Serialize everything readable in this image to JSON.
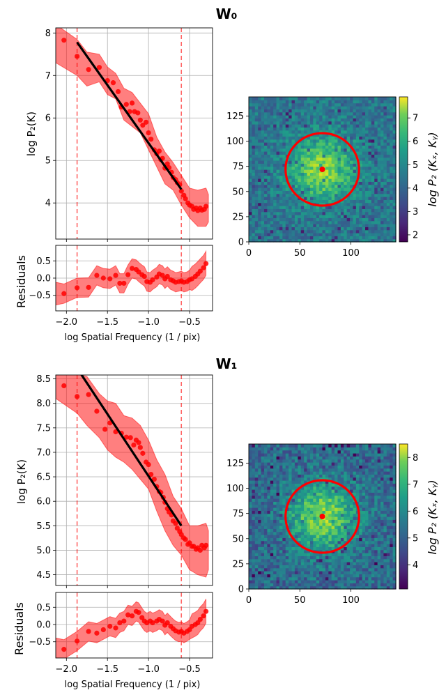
{
  "panels": [
    {
      "title": "W₀",
      "spectrum": {
        "type": "line",
        "ylabel": "log P₂(K)",
        "xlim": [
          -2.13,
          -0.22
        ],
        "ylim": [
          3.15,
          8.12
        ],
        "yticks": [
          4,
          5,
          6,
          7,
          8
        ],
        "vlines": [
          -1.87,
          -0.6
        ],
        "fit_line": [
          [
            -1.87,
            7.78
          ],
          [
            -0.6,
            4.32
          ]
        ],
        "points": [
          [
            -2.03,
            7.83
          ],
          [
            -1.87,
            7.45
          ],
          [
            -1.73,
            7.14
          ],
          [
            -1.6,
            7.19
          ],
          [
            -1.5,
            6.88
          ],
          [
            -1.43,
            6.83
          ],
          [
            -1.37,
            6.62
          ],
          [
            -1.33,
            6.26
          ],
          [
            -1.27,
            6.32
          ],
          [
            -1.23,
            6.15
          ],
          [
            -1.2,
            6.35
          ],
          [
            -1.17,
            6.15
          ],
          [
            -1.13,
            6.12
          ],
          [
            -1.1,
            5.95
          ],
          [
            -1.07,
            5.83
          ],
          [
            -1.03,
            5.9
          ],
          [
            -1.0,
            5.65
          ],
          [
            -0.97,
            5.5
          ],
          [
            -0.93,
            5.25
          ],
          [
            -0.9,
            5.16
          ],
          [
            -0.87,
            5.22
          ],
          [
            -0.85,
            5.02
          ],
          [
            -0.83,
            5.05
          ],
          [
            -0.8,
            4.82
          ],
          [
            -0.77,
            4.92
          ],
          [
            -0.75,
            4.83
          ],
          [
            -0.72,
            4.72
          ],
          [
            -0.7,
            4.6
          ],
          [
            -0.67,
            4.55
          ],
          [
            -0.65,
            4.48
          ],
          [
            -0.62,
            4.43
          ],
          [
            -0.6,
            4.28
          ],
          [
            -0.57,
            4.18
          ],
          [
            -0.55,
            4.1
          ],
          [
            -0.52,
            4.0
          ],
          [
            -0.5,
            3.95
          ],
          [
            -0.47,
            3.92
          ],
          [
            -0.45,
            3.85
          ],
          [
            -0.42,
            3.88
          ],
          [
            -0.4,
            3.82
          ],
          [
            -0.37,
            3.88
          ],
          [
            -0.35,
            3.83
          ],
          [
            -0.32,
            3.85
          ],
          [
            -0.3,
            3.92
          ]
        ],
        "band_upper": [
          [
            -2.13,
            8.2
          ],
          [
            -1.87,
            7.85
          ],
          [
            -1.75,
            7.55
          ],
          [
            -1.6,
            7.5
          ],
          [
            -1.5,
            7.2
          ],
          [
            -1.4,
            7.05
          ],
          [
            -1.3,
            6.7
          ],
          [
            -1.2,
            6.6
          ],
          [
            -1.1,
            6.35
          ],
          [
            -1.0,
            6.1
          ],
          [
            -0.9,
            5.55
          ],
          [
            -0.8,
            5.2
          ],
          [
            -0.7,
            4.95
          ],
          [
            -0.6,
            4.65
          ],
          [
            -0.5,
            4.35
          ],
          [
            -0.4,
            4.3
          ],
          [
            -0.3,
            4.35
          ],
          [
            -0.27,
            4.2
          ]
        ],
        "band_lower": [
          [
            -2.13,
            7.3
          ],
          [
            -1.87,
            7.0
          ],
          [
            -1.75,
            6.75
          ],
          [
            -1.6,
            6.85
          ],
          [
            -1.5,
            6.55
          ],
          [
            -1.4,
            6.45
          ],
          [
            -1.3,
            5.95
          ],
          [
            -1.2,
            5.8
          ],
          [
            -1.1,
            5.65
          ],
          [
            -1.0,
            5.25
          ],
          [
            -0.9,
            4.85
          ],
          [
            -0.8,
            4.45
          ],
          [
            -0.7,
            4.3
          ],
          [
            -0.6,
            3.95
          ],
          [
            -0.5,
            3.65
          ],
          [
            -0.4,
            3.45
          ],
          [
            -0.3,
            3.45
          ],
          [
            -0.27,
            3.55
          ]
        ]
      },
      "residuals": {
        "type": "scatter",
        "ylabel": "Residuals",
        "xlabel": "log Spatial Frequency (1 / pix)",
        "ylim": [
          -0.95,
          0.95
        ],
        "yticks": [
          -0.5,
          0.0,
          0.5
        ],
        "xticks": [
          -2.0,
          -1.5,
          -1.0,
          -0.5
        ],
        "xticklabels": [
          "−2.0",
          "−1.5",
          "−1.0",
          "−0.5"
        ],
        "yticklabels": [
          "−0.5",
          "0.0",
          "0.5"
        ],
        "points": [
          [
            -2.03,
            -0.45
          ],
          [
            -1.87,
            -0.28
          ],
          [
            -1.73,
            -0.27
          ],
          [
            -1.63,
            0.08
          ],
          [
            -1.55,
            0.0
          ],
          [
            -1.47,
            -0.02
          ],
          [
            -1.4,
            0.08
          ],
          [
            -1.35,
            -0.15
          ],
          [
            -1.3,
            -0.15
          ],
          [
            -1.25,
            0.1
          ],
          [
            -1.2,
            0.28
          ],
          [
            -1.15,
            0.25
          ],
          [
            -1.12,
            0.18
          ],
          [
            -1.08,
            0.1
          ],
          [
            -1.05,
            0.05
          ],
          [
            -1.02,
            -0.1
          ],
          [
            -0.98,
            -0.12
          ],
          [
            -0.95,
            -0.05
          ],
          [
            -0.9,
            0.03
          ],
          [
            -0.87,
            0.12
          ],
          [
            -0.83,
            0.08
          ],
          [
            -0.8,
            -0.02
          ],
          [
            -0.77,
            0.05
          ],
          [
            -0.73,
            -0.05
          ],
          [
            -0.7,
            -0.08
          ],
          [
            -0.67,
            -0.12
          ],
          [
            -0.63,
            -0.1
          ],
          [
            -0.6,
            -0.08
          ],
          [
            -0.57,
            -0.12
          ],
          [
            -0.53,
            -0.1
          ],
          [
            -0.5,
            -0.05
          ],
          [
            -0.47,
            -0.02
          ],
          [
            -0.43,
            0.05
          ],
          [
            -0.4,
            0.12
          ],
          [
            -0.37,
            0.2
          ],
          [
            -0.33,
            0.3
          ],
          [
            -0.3,
            0.42
          ]
        ]
      },
      "power_map": {
        "type": "heatmap",
        "xticks": [
          0,
          50,
          100
        ],
        "yticks": [
          0,
          25,
          50,
          75,
          100,
          125
        ],
        "extent": 144,
        "center": [
          72,
          72
        ],
        "ring_radius": 36,
        "colorbar_label": "log P₂ (Kₓ, Kᵧ)",
        "colorbar_range": [
          1.7,
          7.9
        ],
        "colorbar_ticks": [
          2,
          3,
          4,
          5,
          6,
          7
        ],
        "noise_seed": 7,
        "level_bg": 4.15,
        "level_peak": 6.9
      }
    },
    {
      "title": "W₁",
      "spectrum": {
        "type": "line",
        "ylabel": "log P₂(K)",
        "xlim": [
          -2.13,
          -0.22
        ],
        "ylim": [
          4.28,
          8.58
        ],
        "yticks": [
          4.5,
          5.0,
          5.5,
          6.0,
          6.5,
          7.0,
          7.5,
          8.0,
          8.5
        ],
        "vlines": [
          -1.87,
          -0.6
        ],
        "fit_line": [
          [
            -1.87,
            8.72
          ],
          [
            -0.6,
            5.5
          ]
        ],
        "points": [
          [
            -2.03,
            8.36
          ],
          [
            -1.87,
            8.14
          ],
          [
            -1.73,
            8.18
          ],
          [
            -1.63,
            7.84
          ],
          [
            -1.53,
            7.47
          ],
          [
            -1.47,
            7.6
          ],
          [
            -1.4,
            7.42
          ],
          [
            -1.33,
            7.39
          ],
          [
            -1.27,
            7.31
          ],
          [
            -1.22,
            7.3
          ],
          [
            -1.18,
            7.15
          ],
          [
            -1.15,
            7.25
          ],
          [
            -1.12,
            7.2
          ],
          [
            -1.1,
            7.1
          ],
          [
            -1.07,
            6.98
          ],
          [
            -1.03,
            6.8
          ],
          [
            -1.0,
            6.75
          ],
          [
            -0.97,
            6.55
          ],
          [
            -0.93,
            6.45
          ],
          [
            -0.9,
            6.3
          ],
          [
            -0.87,
            6.2
          ],
          [
            -0.85,
            6.18
          ],
          [
            -0.82,
            6.08
          ],
          [
            -0.8,
            5.98
          ],
          [
            -0.77,
            5.85
          ],
          [
            -0.75,
            5.78
          ],
          [
            -0.72,
            5.72
          ],
          [
            -0.7,
            5.6
          ],
          [
            -0.67,
            5.55
          ],
          [
            -0.65,
            5.45
          ],
          [
            -0.62,
            5.38
          ],
          [
            -0.6,
            5.32
          ],
          [
            -0.57,
            5.25
          ],
          [
            -0.55,
            5.22
          ],
          [
            -0.52,
            5.12
          ],
          [
            -0.5,
            5.15
          ],
          [
            -0.47,
            5.08
          ],
          [
            -0.45,
            5.08
          ],
          [
            -0.42,
            5.02
          ],
          [
            -0.4,
            5.05
          ],
          [
            -0.37,
            5.0
          ],
          [
            -0.35,
            5.1
          ],
          [
            -0.32,
            5.05
          ],
          [
            -0.3,
            5.1
          ]
        ],
        "band_upper": [
          [
            -2.13,
            8.6
          ],
          [
            -1.87,
            8.6
          ],
          [
            -1.75,
            8.55
          ],
          [
            -1.6,
            8.2
          ],
          [
            -1.5,
            8.05
          ],
          [
            -1.4,
            8.0
          ],
          [
            -1.3,
            7.75
          ],
          [
            -1.2,
            7.7
          ],
          [
            -1.1,
            7.55
          ],
          [
            -1.0,
            7.25
          ],
          [
            -0.9,
            6.85
          ],
          [
            -0.8,
            6.55
          ],
          [
            -0.7,
            6.1
          ],
          [
            -0.6,
            5.85
          ],
          [
            -0.5,
            5.5
          ],
          [
            -0.4,
            5.5
          ],
          [
            -0.3,
            5.55
          ],
          [
            -0.27,
            5.4
          ]
        ],
        "band_lower": [
          [
            -2.13,
            8.1
          ],
          [
            -1.87,
            7.8
          ],
          [
            -1.75,
            7.55
          ],
          [
            -1.6,
            7.3
          ],
          [
            -1.5,
            7.05
          ],
          [
            -1.4,
            6.9
          ],
          [
            -1.3,
            6.8
          ],
          [
            -1.2,
            6.65
          ],
          [
            -1.1,
            6.45
          ],
          [
            -1.0,
            6.25
          ],
          [
            -0.9,
            5.8
          ],
          [
            -0.8,
            5.4
          ],
          [
            -0.7,
            5.1
          ],
          [
            -0.6,
            4.9
          ],
          [
            -0.5,
            4.6
          ],
          [
            -0.4,
            4.5
          ],
          [
            -0.3,
            4.45
          ],
          [
            -0.27,
            4.6
          ]
        ]
      },
      "residuals": {
        "type": "scatter",
        "ylabel": "Residuals",
        "xlabel": "log Spatial Frequency (1 / pix)",
        "ylim": [
          -0.97,
          0.93
        ],
        "yticks": [
          -0.5,
          0.0,
          0.5
        ],
        "xticks": [
          -2.0,
          -1.5,
          -1.0,
          -0.5
        ],
        "xticklabels": [
          "−2.0",
          "−1.5",
          "−1.0",
          "−0.5"
        ],
        "yticklabels": [
          "−0.5",
          "0.0",
          "0.5"
        ],
        "points": [
          [
            -2.03,
            -0.72
          ],
          [
            -1.87,
            -0.48
          ],
          [
            -1.73,
            -0.2
          ],
          [
            -1.63,
            -0.25
          ],
          [
            -1.55,
            -0.15
          ],
          [
            -1.47,
            -0.05
          ],
          [
            -1.4,
            -0.1
          ],
          [
            -1.35,
            0.05
          ],
          [
            -1.3,
            0.1
          ],
          [
            -1.25,
            0.28
          ],
          [
            -1.2,
            0.25
          ],
          [
            -1.15,
            0.38
          ],
          [
            -1.12,
            0.35
          ],
          [
            -1.08,
            0.2
          ],
          [
            -1.05,
            0.1
          ],
          [
            -1.02,
            0.05
          ],
          [
            -0.98,
            0.1
          ],
          [
            -0.95,
            0.05
          ],
          [
            -0.9,
            0.1
          ],
          [
            -0.87,
            0.15
          ],
          [
            -0.83,
            0.1
          ],
          [
            -0.8,
            -0.02
          ],
          [
            -0.77,
            0.05
          ],
          [
            -0.73,
            -0.05
          ],
          [
            -0.7,
            -0.12
          ],
          [
            -0.67,
            -0.18
          ],
          [
            -0.63,
            -0.22
          ],
          [
            -0.6,
            -0.2
          ],
          [
            -0.57,
            -0.25
          ],
          [
            -0.53,
            -0.2
          ],
          [
            -0.5,
            -0.15
          ],
          [
            -0.47,
            -0.05
          ],
          [
            -0.43,
            0.0
          ],
          [
            -0.4,
            0.05
          ],
          [
            -0.37,
            0.15
          ],
          [
            -0.33,
            0.25
          ],
          [
            -0.3,
            0.38
          ]
        ]
      },
      "power_map": {
        "type": "heatmap",
        "xticks": [
          0,
          50,
          100
        ],
        "yticks": [
          0,
          25,
          50,
          75,
          100,
          125
        ],
        "extent": 144,
        "center": [
          72,
          72
        ],
        "ring_radius": 36,
        "colorbar_label": "log P₂ (Kₓ, Kᵧ)",
        "colorbar_range": [
          3.1,
          8.5
        ],
        "colorbar_ticks": [
          4,
          5,
          6,
          7,
          8
        ],
        "noise_seed": 13,
        "level_bg": 5.0,
        "level_peak": 7.6
      }
    }
  ]
}
